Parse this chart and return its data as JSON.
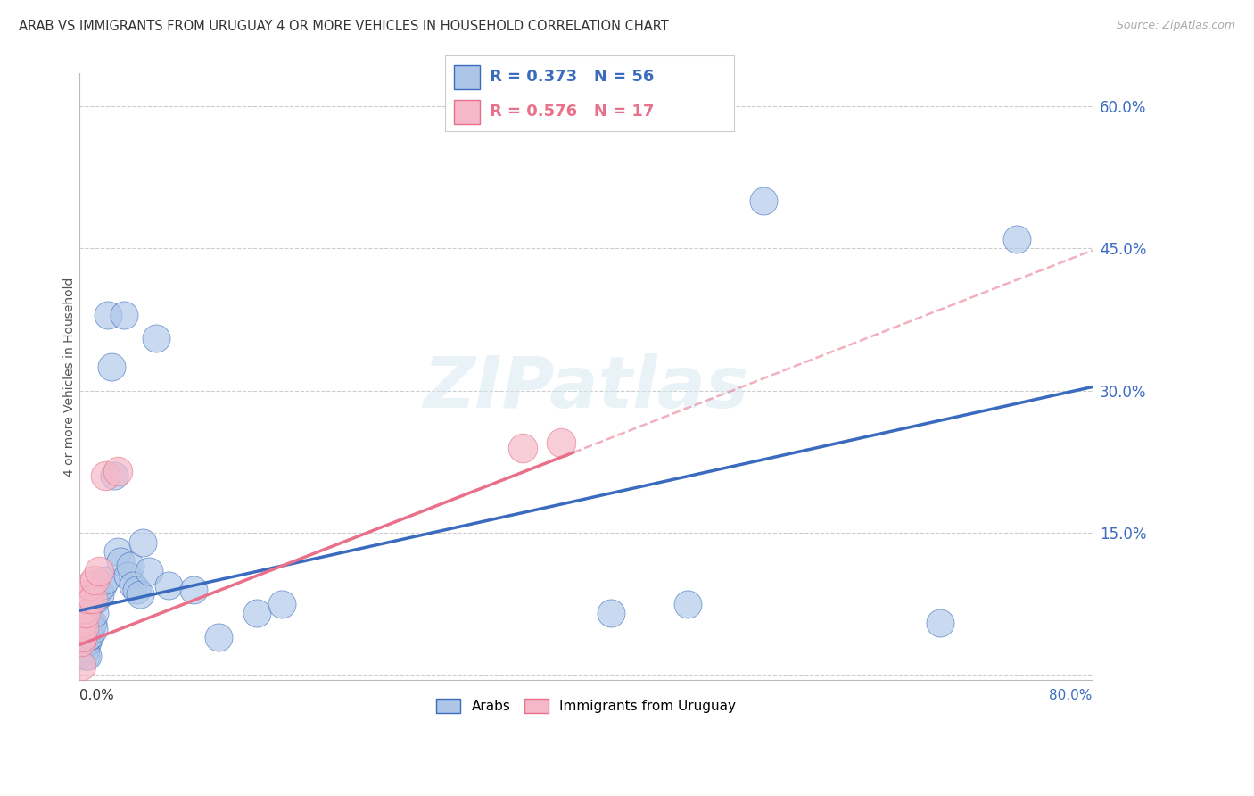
{
  "title": "ARAB VS IMMIGRANTS FROM URUGUAY 4 OR MORE VEHICLES IN HOUSEHOLD CORRELATION CHART",
  "source": "Source: ZipAtlas.com",
  "ylabel": "4 or more Vehicles in Household",
  "xlim": [
    0.0,
    0.8
  ],
  "ylim": [
    -0.005,
    0.635
  ],
  "yticks": [
    0.0,
    0.15,
    0.3,
    0.45,
    0.6
  ],
  "ytick_labels": [
    "",
    "15.0%",
    "30.0%",
    "45.0%",
    "60.0%"
  ],
  "grid_color": "#cccccc",
  "background_color": "#ffffff",
  "arab_color": "#adc6e8",
  "uruguay_color": "#f5b8c8",
  "arab_line_color": "#3a6bbf",
  "uruguay_line_color": "#e8708a",
  "arab_R": 0.373,
  "arab_N": 56,
  "uruguay_R": 0.576,
  "uruguay_N": 17,
  "watermark_text": "ZIPatlas",
  "arab_x": [
    0.001,
    0.001,
    0.002,
    0.002,
    0.002,
    0.003,
    0.003,
    0.003,
    0.003,
    0.004,
    0.004,
    0.004,
    0.005,
    0.005,
    0.005,
    0.005,
    0.006,
    0.006,
    0.006,
    0.007,
    0.007,
    0.008,
    0.008,
    0.009,
    0.01,
    0.011,
    0.012,
    0.013,
    0.015,
    0.016,
    0.018,
    0.02,
    0.022,
    0.025,
    0.027,
    0.03,
    0.032,
    0.035,
    0.038,
    0.04,
    0.042,
    0.045,
    0.048,
    0.05,
    0.055,
    0.06,
    0.07,
    0.09,
    0.11,
    0.14,
    0.16,
    0.42,
    0.48,
    0.54,
    0.68,
    0.74
  ],
  "arab_y": [
    0.055,
    0.04,
    0.035,
    0.05,
    0.03,
    0.06,
    0.045,
    0.03,
    0.025,
    0.055,
    0.038,
    0.025,
    0.06,
    0.04,
    0.028,
    0.02,
    0.05,
    0.035,
    0.02,
    0.06,
    0.04,
    0.058,
    0.042,
    0.05,
    0.055,
    0.048,
    0.065,
    0.08,
    0.09,
    0.085,
    0.095,
    0.1,
    0.38,
    0.325,
    0.21,
    0.13,
    0.12,
    0.38,
    0.105,
    0.115,
    0.095,
    0.09,
    0.085,
    0.14,
    0.11,
    0.355,
    0.095,
    0.09,
    0.04,
    0.065,
    0.075,
    0.065,
    0.075,
    0.5,
    0.055,
    0.46
  ],
  "uruguay_x": [
    0.001,
    0.001,
    0.002,
    0.002,
    0.003,
    0.004,
    0.005,
    0.006,
    0.007,
    0.008,
    0.01,
    0.012,
    0.015,
    0.02,
    0.03,
    0.35,
    0.38
  ],
  "uruguay_y": [
    0.01,
    0.035,
    0.04,
    0.055,
    0.05,
    0.07,
    0.065,
    0.085,
    0.08,
    0.095,
    0.08,
    0.1,
    0.11,
    0.21,
    0.215,
    0.24,
    0.245
  ]
}
